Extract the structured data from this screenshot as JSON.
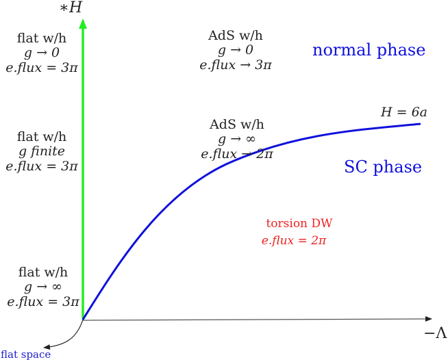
{
  "axes": {
    "y_label": "∗H",
    "x_label": "−Λ"
  },
  "regions": {
    "flat_top": {
      "line1": "flat w/h",
      "line2": "g → 0",
      "line3": "e.flux = 3π"
    },
    "flat_mid": {
      "line1": "flat w/h",
      "line2": "g finite",
      "line3": "e.flux = 3π"
    },
    "flat_bottom": {
      "line1": "flat w/h",
      "line2": "g → ∞",
      "line3": "e.flux = 3π"
    },
    "ads_top": {
      "line1": "AdS w/h",
      "line2": "g → 0",
      "line3": "e.flux → 3π"
    },
    "ads_mid": {
      "line1": "AdS w/h",
      "line2": "g → ∞",
      "line3": "e.flux → 2π"
    },
    "torsion": {
      "line1": "torsion DW",
      "line2": "e.flux = 2π"
    }
  },
  "phases": {
    "normal": "normal phase",
    "sc": "SC phase"
  },
  "curve_label": "H = 6a",
  "origin_label": "flat space",
  "colors": {
    "curve": "#1010dd",
    "vertical_axis": "#22ee22",
    "phase_text": "#1010dd",
    "torsion_text": "#ee2222",
    "text": "#222222"
  }
}
